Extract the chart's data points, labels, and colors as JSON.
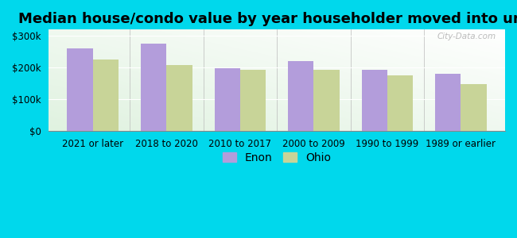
{
  "title": "Median house/condo value by year householder moved into unit",
  "categories": [
    "2021 or later",
    "2018 to 2020",
    "2010 to 2017",
    "2000 to 2009",
    "1990 to 1999",
    "1989 or earlier"
  ],
  "enon_values": [
    260000,
    275000,
    197000,
    220000,
    193000,
    180000
  ],
  "ohio_values": [
    225000,
    207000,
    193000,
    193000,
    175000,
    148000
  ],
  "enon_color": "#b39ddb",
  "ohio_color": "#c8d498",
  "background_outer": "#00d8ec",
  "ylim": [
    0,
    320000
  ],
  "yticks": [
    0,
    100000,
    200000,
    300000
  ],
  "ytick_labels": [
    "$0",
    "$100k",
    "$200k",
    "$300k"
  ],
  "bar_width": 0.35,
  "legend_labels": [
    "Enon",
    "Ohio"
  ],
  "watermark": "City-Data.com",
  "title_fontsize": 13,
  "tick_fontsize": 8.5,
  "legend_fontsize": 10
}
